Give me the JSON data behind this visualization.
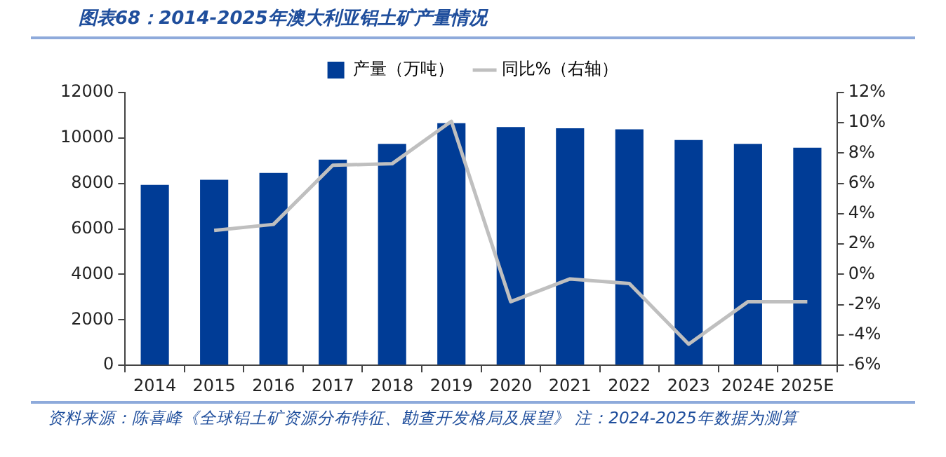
{
  "chart_data": {
    "type": "bar",
    "title": "图表68：2014-2025年澳大利亚铝土矿产量情况",
    "categories": [
      "2014",
      "2015",
      "2016",
      "2017",
      "2018",
      "2019",
      "2020",
      "2021",
      "2022",
      "2023",
      "2024E",
      "2025E"
    ],
    "series": [
      {
        "name": "产量（万吨）",
        "color": "#003c96",
        "values": [
          7940,
          8160,
          8460,
          9050,
          9740,
          10650,
          10480,
          10430,
          10380,
          9910,
          9740,
          9570
        ]
      },
      {
        "name": "同比%（右轴）",
        "type": "line",
        "axis": "y2",
        "color": "#bfbfbf",
        "values": [
          null,
          2.9,
          3.3,
          7.2,
          7.3,
          10.1,
          -1.8,
          -0.3,
          -0.6,
          -4.6,
          -1.8,
          -1.8
        ]
      }
    ],
    "ylim": [
      0,
      12000
    ],
    "yticks": [
      0,
      2000,
      4000,
      6000,
      8000,
      10000,
      12000
    ],
    "y2lim": [
      -6,
      12
    ],
    "y2ticks": [
      {
        "value": -6,
        "label": "-6%"
      },
      {
        "value": -4,
        "label": "-4%"
      },
      {
        "value": -2,
        "label": "-2%"
      },
      {
        "value": 0,
        "label": "0%"
      },
      {
        "value": 2,
        "label": "2%"
      },
      {
        "value": 4,
        "label": "4%"
      },
      {
        "value": 6,
        "label": "6%"
      },
      {
        "value": 8,
        "label": "8%"
      },
      {
        "value": 10,
        "label": "10%"
      },
      {
        "value": 12,
        "label": "12%"
      }
    ],
    "legend": "top",
    "grid": false,
    "marker": "none",
    "annotations": [
      "资料来源：陈喜峰《全球铝土矿资源分布特征、勘查开发格局及展望》 注：2024-2025年数据为测算"
    ]
  }
}
